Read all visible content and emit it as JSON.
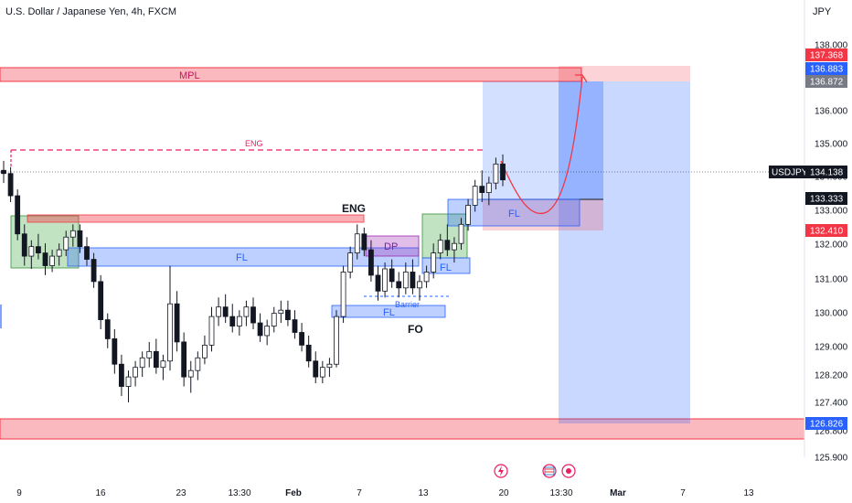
{
  "header": {
    "symbol_title": "U.S. Dollar / Japanese Yen, 4h, FXCM",
    "currency": "JPY"
  },
  "chart_data": {
    "type": "candlestick",
    "symbol": "USDJPY",
    "timeframe": "4h",
    "ylim": [
      125.6,
      138.55
    ],
    "y_ticks": [
      "138.000",
      "137.000",
      "136.000",
      "135.000",
      "134.000",
      "133.000",
      "132.000",
      "131.000",
      "130.000",
      "129.000",
      "128.200",
      "127.400",
      "126.800",
      "125.900"
    ],
    "x_ticks": [
      "9",
      "16",
      "23",
      "13:30",
      "Feb",
      "7",
      "13",
      "20",
      "13:30",
      "Mar",
      "7",
      "13"
    ],
    "price_labels": [
      {
        "text": "137.368",
        "value": 137.368,
        "color": "#f23645"
      },
      {
        "text": "136.883",
        "value": 136.883,
        "color": "#2962ff"
      },
      {
        "text": "136.872",
        "value": 136.872,
        "color": "#787b86"
      },
      {
        "text": "USDJPY",
        "value": 134.138,
        "color": "#131722"
      },
      {
        "text": "134.138",
        "value": 134.138,
        "color": "#131722"
      },
      {
        "text": "133.333",
        "value": 133.333,
        "color": "#131722"
      },
      {
        "text": "132.410",
        "value": 132.41,
        "color": "#f23645"
      },
      {
        "text": "126.826",
        "value": 126.826,
        "color": "#2962ff"
      }
    ],
    "zones": [
      {
        "label": "MPL",
        "ymin": 136.8,
        "ymax": 137.2,
        "color": "#f23645",
        "x_from": 0,
        "x_to": 1
      },
      {
        "label": "",
        "ymin": 126.15,
        "ymax": 126.8,
        "color": "#f23645",
        "x_from": 0,
        "x_to": 1
      },
      {
        "label": "FL",
        "ymin": 131.2,
        "ymax": 131.72,
        "color": "#2962ff",
        "x_from": 0.08,
        "x_to": 0.49
      },
      {
        "label": "",
        "ymin": 132.6,
        "ymax": 132.85,
        "color": "#f23645",
        "x_from": 0.03,
        "x_to": 0.43
      },
      {
        "label": "DP",
        "ymin": 131.7,
        "ymax": 132.25,
        "color": "#9c27b0",
        "x_from": 0.43,
        "x_to": 0.49
      },
      {
        "label": "FL",
        "ymin": 129.8,
        "ymax": 130.15,
        "color": "#2962ff",
        "x_from": 0.39,
        "x_to": 0.52
      },
      {
        "label": "FL",
        "ymin": 131.05,
        "ymax": 131.5,
        "color": "#2962ff",
        "x_from": 0.5,
        "x_to": 0.55
      },
      {
        "label": "FL",
        "ymin": 132.55,
        "ymax": 133.35,
        "color": "#2962ff",
        "x_from": 0.53,
        "x_to": 0.68
      }
    ],
    "annotations": [
      "ENG",
      "ENG",
      "FO",
      "Barrier",
      "FL"
    ],
    "candles": [
      [
        134.6,
        134.9,
        134.2,
        134.5
      ],
      [
        134.5,
        134.7,
        133.6,
        133.8
      ],
      [
        133.8,
        134.0,
        132.4,
        132.6
      ],
      [
        132.6,
        132.9,
        131.6,
        131.9
      ],
      [
        131.9,
        132.4,
        131.5,
        132.2
      ],
      [
        132.2,
        132.6,
        131.8,
        132.0
      ],
      [
        132.0,
        132.3,
        131.3,
        131.6
      ],
      [
        131.6,
        132.1,
        131.4,
        131.9
      ],
      [
        131.9,
        132.3,
        131.6,
        132.1
      ],
      [
        132.1,
        132.7,
        131.9,
        132.5
      ],
      [
        132.5,
        132.9,
        132.2,
        132.7
      ],
      [
        132.7,
        132.9,
        132.0,
        132.2
      ],
      [
        132.2,
        132.5,
        131.6,
        131.8
      ],
      [
        131.8,
        132.0,
        130.9,
        131.1
      ],
      [
        131.1,
        131.3,
        129.6,
        129.9
      ],
      [
        129.9,
        130.1,
        129.0,
        129.3
      ],
      [
        129.3,
        129.6,
        128.2,
        128.5
      ],
      [
        128.5,
        128.8,
        127.5,
        127.8
      ],
      [
        127.8,
        128.3,
        127.3,
        128.1
      ],
      [
        128.1,
        128.6,
        127.8,
        128.4
      ],
      [
        128.4,
        128.9,
        128.1,
        128.7
      ],
      [
        128.7,
        129.2,
        128.4,
        128.9
      ],
      [
        128.9,
        129.3,
        128.2,
        128.4
      ],
      [
        128.4,
        128.8,
        128.0,
        128.6
      ],
      [
        128.6,
        131.6,
        128.3,
        130.4
      ],
      [
        130.4,
        130.8,
        128.9,
        129.2
      ],
      [
        129.2,
        129.5,
        127.8,
        128.1
      ],
      [
        128.1,
        128.6,
        127.6,
        128.3
      ],
      [
        128.3,
        128.9,
        128.0,
        128.7
      ],
      [
        128.7,
        129.4,
        128.5,
        129.1
      ],
      [
        129.1,
        130.3,
        128.9,
        130.0
      ],
      [
        130.0,
        130.6,
        129.7,
        130.3
      ],
      [
        130.3,
        130.7,
        129.8,
        130.0
      ],
      [
        130.0,
        130.4,
        129.5,
        129.7
      ],
      [
        129.7,
        130.2,
        129.4,
        130.0
      ],
      [
        130.0,
        130.5,
        129.7,
        130.3
      ],
      [
        130.3,
        130.6,
        129.6,
        129.8
      ],
      [
        129.8,
        130.1,
        129.2,
        129.4
      ],
      [
        129.4,
        129.9,
        129.1,
        129.7
      ],
      [
        129.7,
        130.3,
        129.5,
        130.1
      ],
      [
        130.1,
        130.5,
        129.8,
        130.2
      ],
      [
        130.2,
        130.5,
        129.7,
        129.9
      ],
      [
        129.9,
        130.2,
        129.3,
        129.5
      ],
      [
        129.5,
        129.8,
        128.9,
        129.1
      ],
      [
        129.1,
        129.4,
        128.4,
        128.6
      ],
      [
        128.6,
        128.9,
        127.9,
        128.1
      ],
      [
        128.1,
        128.6,
        127.9,
        128.4
      ],
      [
        128.4,
        128.7,
        128.1,
        128.5
      ],
      [
        128.5,
        130.2,
        128.4,
        130.0
      ],
      [
        130.0,
        131.6,
        129.8,
        131.4
      ],
      [
        131.4,
        132.2,
        131.2,
        132.0
      ],
      [
        132.0,
        132.9,
        131.8,
        132.6
      ],
      [
        132.6,
        132.8,
        131.9,
        132.1
      ],
      [
        132.1,
        132.4,
        131.1,
        131.3
      ],
      [
        131.3,
        131.6,
        130.5,
        130.8
      ],
      [
        130.8,
        131.7,
        130.6,
        131.5
      ],
      [
        131.5,
        131.8,
        130.9,
        131.1
      ],
      [
        131.1,
        131.4,
        130.6,
        130.9
      ],
      [
        130.9,
        131.7,
        130.7,
        131.4
      ],
      [
        131.4,
        131.8,
        130.7,
        130.9
      ],
      [
        130.9,
        131.3,
        130.5,
        131.1
      ],
      [
        131.1,
        131.6,
        130.9,
        131.4
      ],
      [
        131.4,
        132.3,
        131.2,
        132.0
      ],
      [
        132.0,
        132.6,
        131.8,
        132.4
      ],
      [
        132.4,
        132.9,
        131.9,
        132.1
      ],
      [
        132.1,
        132.5,
        131.7,
        132.3
      ],
      [
        132.3,
        133.1,
        132.1,
        132.9
      ],
      [
        132.9,
        133.7,
        132.7,
        133.5
      ],
      [
        133.5,
        134.3,
        133.3,
        134.1
      ],
      [
        134.1,
        134.6,
        133.6,
        133.9
      ],
      [
        133.9,
        134.4,
        133.5,
        134.2
      ],
      [
        134.2,
        135.0,
        134.0,
        134.8
      ],
      [
        134.8,
        135.1,
        134.1,
        134.3
      ]
    ]
  },
  "overlays": {
    "eng_line_label": "ENG",
    "mpl_label": "MPL",
    "fl_main": "FL",
    "dp_label": "DP",
    "fl_barrier": "FL",
    "fl_small": "FL",
    "fl_right": "FL",
    "eng_mid_label": "ENG",
    "fo_label": "FO",
    "barrier_label": "Barrier"
  },
  "colors": {
    "up_candle": "#131722",
    "down_candle": "#131722",
    "pink_zone": "#f23645",
    "blue_zone": "#2962ff",
    "green_zone": "#4caf50",
    "projection": "#f23645"
  },
  "icons": [
    "flash-icon",
    "flag-us-icon",
    "record-icon"
  ]
}
